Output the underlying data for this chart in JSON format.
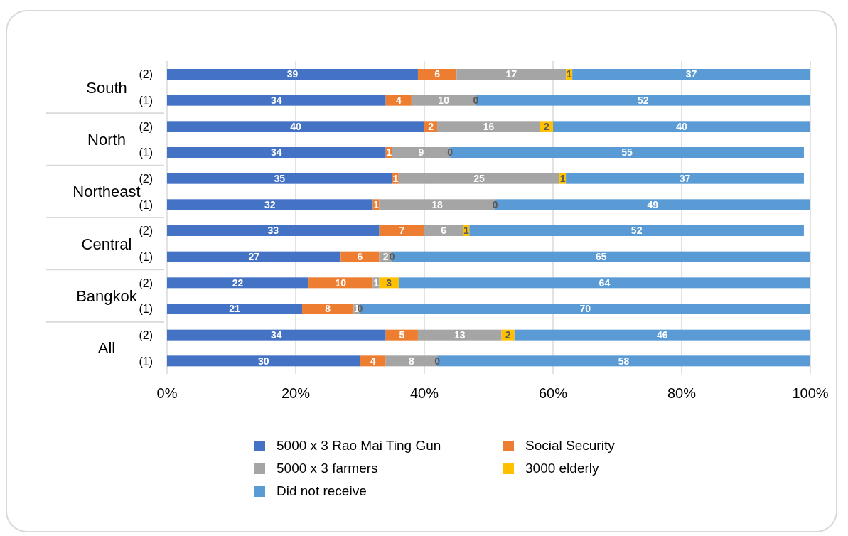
{
  "chart_data": {
    "type": "bar",
    "orientation": "horizontal",
    "stacked": true,
    "data_labels": true,
    "grid": "x",
    "legend": "bottom",
    "categories": [
      "(2)",
      "(1)",
      "(2)",
      "(1)",
      "(2)",
      "(1)",
      "(2)",
      "(1)",
      "(2)",
      "(1)",
      "(2)",
      "(1)"
    ],
    "annotations": [
      "South",
      "North",
      "Northeast",
      "Central",
      "Bangkok",
      "All"
    ],
    "xlim": [
      0,
      100
    ],
    "xticks": [
      {
        "value": 0,
        "label": "0%"
      },
      {
        "value": 20,
        "label": "20%"
      },
      {
        "value": 40,
        "label": "40%"
      },
      {
        "value": 60,
        "label": "60%"
      },
      {
        "value": 80,
        "label": "80%"
      },
      {
        "value": 100,
        "label": "100%"
      }
    ],
    "series": [
      {
        "name": "5000 x 3 Rao Mai Ting Gun",
        "color": "#4472c4",
        "values": [
          39,
          34,
          40,
          34,
          35,
          32,
          33,
          27,
          22,
          21,
          34,
          30
        ]
      },
      {
        "name": "Social Security",
        "color": "#ed7d31",
        "values": [
          6,
          4,
          2,
          1,
          1,
          1,
          7,
          6,
          10,
          8,
          5,
          4
        ]
      },
      {
        "name": "5000 x 3 farmers",
        "color": "#a5a5a5",
        "values": [
          17,
          10,
          16,
          9,
          25,
          18,
          6,
          2,
          1,
          1,
          13,
          8
        ]
      },
      {
        "name": "3000 elderly",
        "color": "#ffc000",
        "values": [
          1,
          0,
          2,
          0,
          1,
          0,
          1,
          0,
          3,
          0,
          2,
          0
        ]
      },
      {
        "name": "Did not receive",
        "color": "#5b9bd5",
        "values": [
          37,
          52,
          40,
          55,
          37,
          49,
          52,
          65,
          64,
          70,
          46,
          58
        ]
      }
    ]
  }
}
